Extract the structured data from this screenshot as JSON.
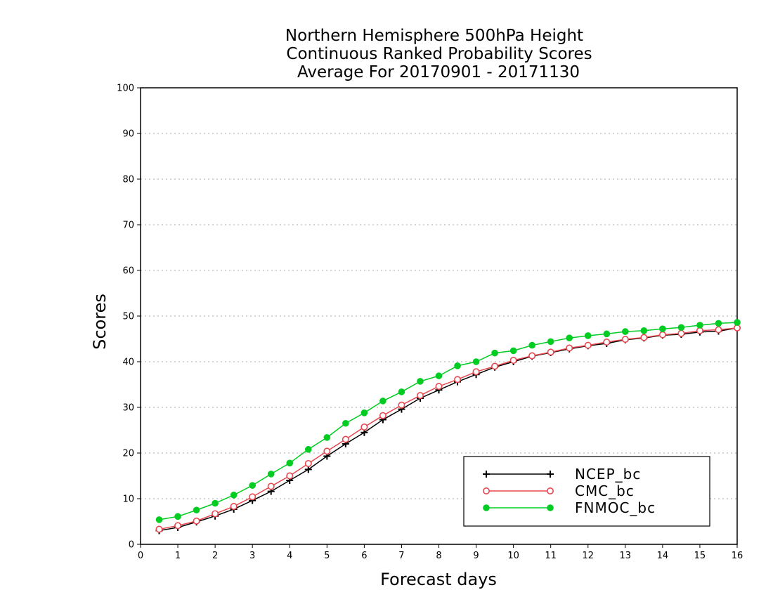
{
  "chart_data": {
    "type": "line",
    "title_lines": [
      "Northern Hemisphere 500hPa Height",
      "Continuous Ranked Probability Scores",
      "Average For 20170901 - 20171130"
    ],
    "xlabel": "Forecast days",
    "ylabel": "Scores",
    "xlim": [
      0,
      16
    ],
    "ylim": [
      0,
      100
    ],
    "xticks": [
      0,
      1,
      2,
      3,
      4,
      5,
      6,
      7,
      8,
      9,
      10,
      11,
      12,
      13,
      14,
      15,
      16
    ],
    "yticks": [
      0,
      10,
      20,
      30,
      40,
      50,
      60,
      70,
      80,
      90,
      100
    ],
    "grid": "horizontal dotted",
    "legend_position": "bottom-right",
    "x": [
      0.5,
      1,
      1.5,
      2,
      2.5,
      3,
      3.5,
      4,
      4.5,
      5,
      5.5,
      6,
      6.5,
      7,
      7.5,
      8,
      8.5,
      9,
      9.5,
      10,
      10.5,
      11,
      11.5,
      12,
      12.5,
      13,
      13.5,
      14,
      14.5,
      15,
      15.5,
      16
    ],
    "series": [
      {
        "name": "NCEP_bc",
        "color": "#000000",
        "marker": "plus",
        "values": [
          3.0,
          3.7,
          4.9,
          6.2,
          7.7,
          9.6,
          11.6,
          14.0,
          16.4,
          19.3,
          22.0,
          24.5,
          27.3,
          29.6,
          32.0,
          33.8,
          35.6,
          37.2,
          38.8,
          40.0,
          41.2,
          42.0,
          42.8,
          43.5,
          44.0,
          44.8,
          45.2,
          45.8,
          46.0,
          46.5,
          46.7,
          47.4
        ]
      },
      {
        "name": "CMC_bc",
        "color": "#e8474f",
        "marker": "open-circle",
        "values": [
          3.3,
          4.1,
          5.1,
          6.7,
          8.3,
          10.4,
          12.7,
          15.0,
          17.7,
          20.4,
          23.0,
          25.7,
          28.2,
          30.5,
          32.6,
          34.6,
          36.1,
          37.8,
          39.0,
          40.3,
          41.3,
          42.1,
          43.0,
          43.6,
          44.3,
          44.9,
          45.3,
          45.9,
          46.2,
          46.8,
          47.0,
          47.4
        ]
      },
      {
        "name": "FNMOC_bc",
        "color": "#00cc22",
        "marker": "filled-circle",
        "values": [
          5.4,
          6.1,
          7.5,
          9.0,
          10.8,
          12.9,
          15.4,
          17.8,
          20.8,
          23.4,
          26.5,
          28.8,
          31.4,
          33.4,
          35.7,
          36.9,
          39.1,
          40.0,
          41.9,
          42.4,
          43.6,
          44.4,
          45.2,
          45.7,
          46.1,
          46.6,
          46.8,
          47.2,
          47.5,
          48.0,
          48.4,
          48.6
        ]
      }
    ]
  }
}
